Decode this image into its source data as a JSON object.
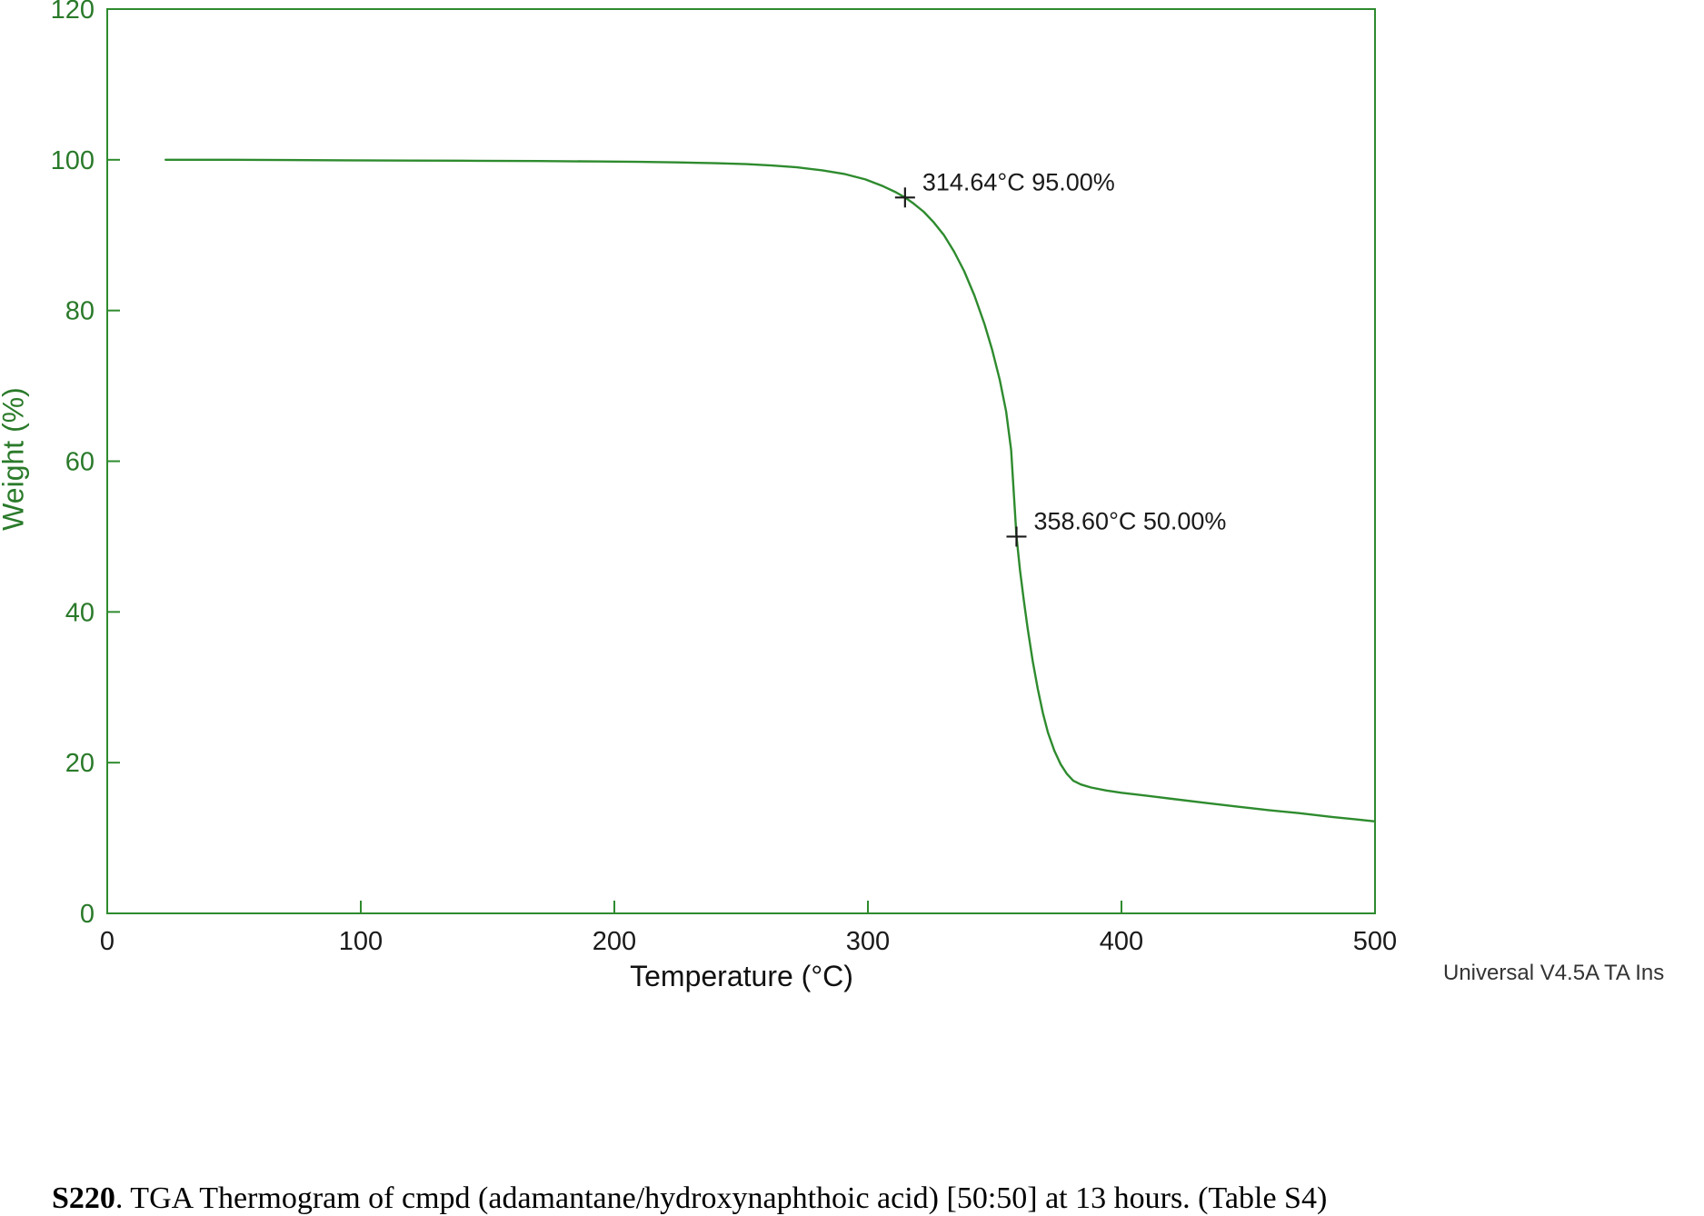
{
  "chart_data": {
    "type": "line",
    "title": "",
    "xlabel": "Temperature (°C)",
    "ylabel": "Weight (%)",
    "xlim": [
      0,
      500
    ],
    "ylim": [
      0,
      120
    ],
    "x_ticks": [
      0,
      100,
      200,
      300,
      400,
      500
    ],
    "y_ticks": [
      0,
      20,
      40,
      60,
      80,
      100,
      120
    ],
    "grid": false,
    "legend": "none",
    "axis_color": "#2e8b2e",
    "x_tick_color": "#1a1a1a",
    "y_tick_color": "#2a7a2a",
    "annotation_color": "#1a1a1a",
    "series": [
      {
        "name": "weight-percent",
        "color": "#2e8b2e",
        "points": [
          [
            23,
            100
          ],
          [
            45,
            100
          ],
          [
            70,
            99.97
          ],
          [
            95,
            99.93
          ],
          [
            120,
            99.9
          ],
          [
            145,
            99.87
          ],
          [
            170,
            99.83
          ],
          [
            195,
            99.78
          ],
          [
            210,
            99.73
          ],
          [
            225,
            99.65
          ],
          [
            240,
            99.55
          ],
          [
            252,
            99.42
          ],
          [
            262,
            99.25
          ],
          [
            272,
            99.0
          ],
          [
            282,
            98.6
          ],
          [
            291,
            98.1
          ],
          [
            299,
            97.4
          ],
          [
            306,
            96.5
          ],
          [
            311,
            95.7
          ],
          [
            314.64,
            95.0
          ],
          [
            318,
            94.2
          ],
          [
            322,
            93.1
          ],
          [
            326,
            91.7
          ],
          [
            330,
            90.0
          ],
          [
            334,
            87.8
          ],
          [
            338,
            85.2
          ],
          [
            342,
            82.0
          ],
          [
            346,
            78.2
          ],
          [
            349,
            74.8
          ],
          [
            352,
            70.8
          ],
          [
            354.5,
            66.6
          ],
          [
            356.5,
            61.5
          ],
          [
            358.6,
            50.0
          ],
          [
            360,
            45.5
          ],
          [
            361.5,
            41.5
          ],
          [
            363,
            37.8
          ],
          [
            365,
            33.5
          ],
          [
            367,
            29.8
          ],
          [
            369,
            26.6
          ],
          [
            371,
            24.0
          ],
          [
            373.5,
            21.6
          ],
          [
            376,
            19.8
          ],
          [
            378.5,
            18.5
          ],
          [
            381,
            17.6
          ],
          [
            384,
            17.1
          ],
          [
            388,
            16.7
          ],
          [
            394,
            16.3
          ],
          [
            400,
            16.0
          ],
          [
            410,
            15.6
          ],
          [
            420,
            15.2
          ],
          [
            432,
            14.7
          ],
          [
            445,
            14.2
          ],
          [
            458,
            13.7
          ],
          [
            470,
            13.3
          ],
          [
            483,
            12.8
          ],
          [
            492,
            12.5
          ],
          [
            500,
            12.2
          ]
        ]
      }
    ],
    "annotations": [
      {
        "x": 314.64,
        "y": 95.0,
        "label": "314.64°C 95.00%"
      },
      {
        "x": 358.6,
        "y": 50.0,
        "label": "358.60°C 50.00%"
      }
    ]
  },
  "footer": {
    "credit": "Universal V4.5A TA Ins"
  },
  "caption": {
    "id": "S220",
    "text": ". TGA Thermogram of cmpd (adamantane/hydroxynaphthoic acid) [50:50] at 13 hours. (Table S4)"
  }
}
